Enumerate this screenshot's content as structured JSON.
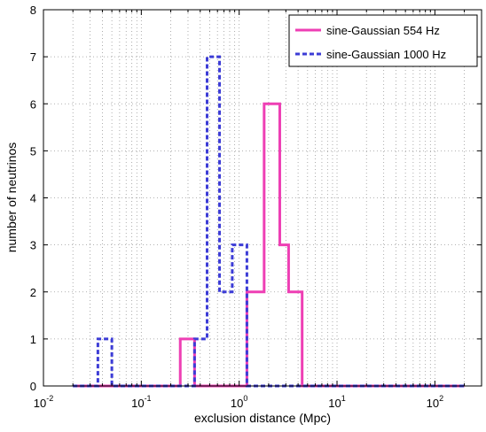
{
  "chart_data": {
    "type": "line",
    "xlabel": "exclusion distance (Mpc)",
    "ylabel": "number of neutrinos",
    "x_scale": "log",
    "xlim": [
      0.01,
      300
    ],
    "ylim": [
      0,
      8
    ],
    "x_tick_exponents": [
      -2,
      -1,
      0,
      1,
      2
    ],
    "y_ticks": [
      0,
      1,
      2,
      3,
      4,
      5,
      6,
      7,
      8
    ],
    "grid": true,
    "legend_position": "top-right",
    "series": [
      {
        "name": "sine-Gaussian 554 Hz",
        "color": "#ee3fb4",
        "line_style": "solid",
        "step_x": [
          0.02,
          0.25,
          0.25,
          0.35,
          0.35,
          1.2,
          1.2,
          1.8,
          1.8,
          2.6,
          2.6,
          3.2,
          3.2,
          4.4,
          4.4,
          200
        ],
        "step_y": [
          0,
          0,
          1,
          1,
          0,
          0,
          2,
          2,
          6,
          6,
          3,
          3,
          2,
          2,
          0,
          0
        ]
      },
      {
        "name": "sine-Gaussian 1000 Hz",
        "color": "#3c3cd6",
        "line_style": "dashed",
        "step_x": [
          0.02,
          0.036,
          0.036,
          0.05,
          0.05,
          0.35,
          0.35,
          0.47,
          0.47,
          0.63,
          0.63,
          0.85,
          0.85,
          1.2,
          1.2,
          200
        ],
        "step_y": [
          0,
          0,
          1,
          1,
          0,
          0,
          1,
          1,
          7,
          7,
          2,
          2,
          3,
          3,
          0,
          0
        ]
      }
    ]
  }
}
